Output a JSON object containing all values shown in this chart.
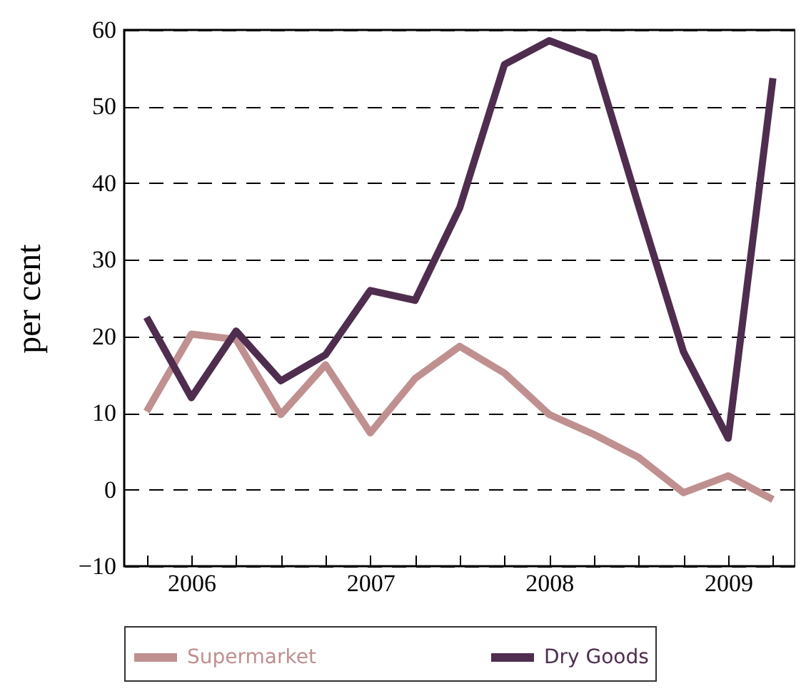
{
  "chart_data": {
    "type": "line",
    "ylabel": "per cent",
    "categories": [
      null,
      "2006",
      null,
      null,
      null,
      "2007",
      null,
      null,
      null,
      "2008",
      null,
      null,
      null,
      "2009",
      null
    ],
    "series": [
      {
        "name": "Supermarket",
        "color": "#c09090",
        "values": [
          10.2,
          20.3,
          19.6,
          9.8,
          16.3,
          7.4,
          14.5,
          18.7,
          15.2,
          9.8,
          7.2,
          4.2,
          -0.4,
          1.8,
          -1.3
        ]
      },
      {
        "name": "Dry Goods",
        "color": "#4f2d4f",
        "values": [
          22.5,
          12,
          20.7,
          14.2,
          17.6,
          26,
          24.7,
          36.8,
          55.5,
          58.6,
          56.4,
          37,
          18,
          6.7,
          53.7
        ]
      }
    ],
    "ylim": [
      -10,
      60
    ],
    "yticks": [
      -10,
      0,
      10,
      20,
      30,
      40,
      50,
      60
    ],
    "grid": "y",
    "legend": "bottom",
    "line_style": "solid",
    "marker": "none"
  }
}
